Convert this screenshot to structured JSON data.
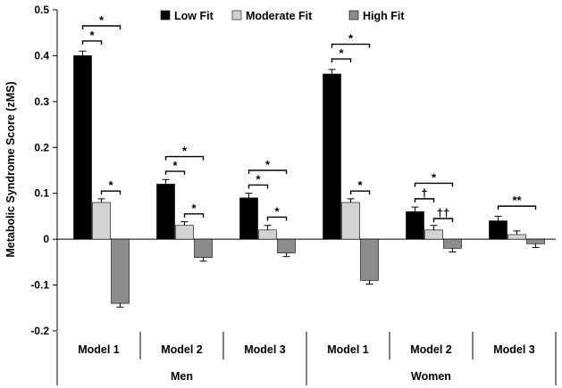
{
  "chart_data": {
    "type": "bar",
    "ylabel": "Metabolic Syndrome Score (zMS)",
    "ylim": [
      -0.2,
      0.5
    ],
    "yticks": [
      -0.2,
      -0.1,
      0,
      0.1,
      0.2,
      0.3,
      0.4,
      0.5
    ],
    "ytick_labels": [
      "-0.2",
      "-0.1",
      "0",
      "0.1",
      "0.2",
      "0.3",
      "0.4",
      "0.5"
    ],
    "legend_position": "top",
    "groups": [
      "Men",
      "Women"
    ],
    "categories": [
      "Model 1",
      "Model 2",
      "Model 3",
      "Model 1",
      "Model 2",
      "Model 3"
    ],
    "category_group": [
      0,
      0,
      0,
      1,
      1,
      1
    ],
    "series": [
      {
        "name": "Low Fit",
        "color": "#000000",
        "values": [
          0.4,
          0.12,
          0.09,
          0.36,
          0.06,
          0.04
        ],
        "errors": [
          0.01,
          0.01,
          0.01,
          0.01,
          0.01,
          0.01
        ]
      },
      {
        "name": "Moderate Fit",
        "color": "#d3d3d3",
        "values": [
          0.08,
          0.03,
          0.02,
          0.08,
          0.02,
          0.01
        ],
        "errors": [
          0.008,
          0.008,
          0.01,
          0.008,
          0.01,
          0.008
        ]
      },
      {
        "name": "High Fit",
        "color": "#8c8c8c",
        "values": [
          -0.14,
          -0.04,
          -0.03,
          -0.09,
          -0.02,
          -0.01
        ],
        "errors": [
          0.008,
          0.008,
          0.008,
          0.008,
          0.008,
          0.008
        ]
      }
    ],
    "annotations": [
      {
        "category": 0,
        "from": 0,
        "to": 1,
        "level": 0.432,
        "label": "*"
      },
      {
        "category": 0,
        "from": 0,
        "to": 2,
        "level": 0.465,
        "label": "*"
      },
      {
        "category": 0,
        "from": 1,
        "to": 2,
        "level": 0.105,
        "label": "*"
      },
      {
        "category": 1,
        "from": 0,
        "to": 1,
        "level": 0.148,
        "label": "*"
      },
      {
        "category": 1,
        "from": 0,
        "to": 2,
        "level": 0.18,
        "label": "*"
      },
      {
        "category": 1,
        "from": 1,
        "to": 2,
        "level": 0.055,
        "label": "*"
      },
      {
        "category": 2,
        "from": 0,
        "to": 1,
        "level": 0.118,
        "label": "*"
      },
      {
        "category": 2,
        "from": 0,
        "to": 2,
        "level": 0.15,
        "label": "*"
      },
      {
        "category": 2,
        "from": 1,
        "to": 2,
        "level": 0.048,
        "label": "*"
      },
      {
        "category": 3,
        "from": 0,
        "to": 1,
        "level": 0.393,
        "label": "*"
      },
      {
        "category": 3,
        "from": 0,
        "to": 2,
        "level": 0.425,
        "label": "*"
      },
      {
        "category": 3,
        "from": 1,
        "to": 2,
        "level": 0.105,
        "label": "*"
      },
      {
        "category": 4,
        "from": 0,
        "to": 1,
        "level": 0.088,
        "label": "†"
      },
      {
        "category": 4,
        "from": 0,
        "to": 2,
        "level": 0.122,
        "label": "*"
      },
      {
        "category": 4,
        "from": 1,
        "to": 2,
        "level": 0.045,
        "label": "††"
      },
      {
        "category": 5,
        "from": 0,
        "to": 2,
        "level": 0.072,
        "label": "**"
      }
    ]
  }
}
